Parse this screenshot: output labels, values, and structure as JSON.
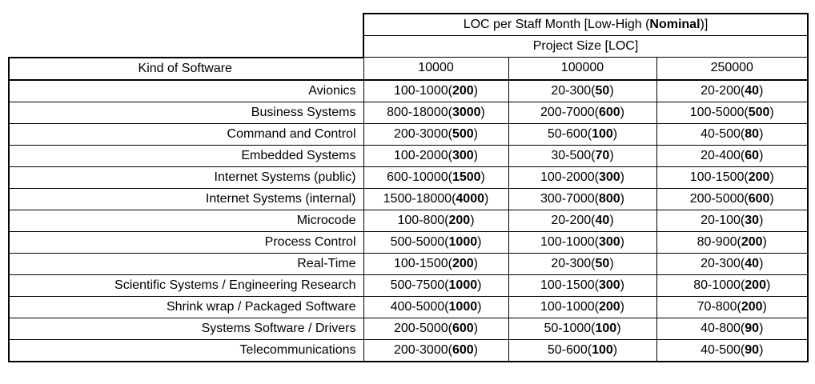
{
  "table": {
    "header": {
      "title_pre": "LOC per Staff Month [Low-High (",
      "title_bold": "Nominal",
      "title_post": ")]",
      "subtitle": "Project Size [LOC]",
      "kind_label": "Kind of Software",
      "sizes": [
        "10000",
        "100000",
        "250000"
      ]
    },
    "rows": [
      {
        "kind": "Avionics",
        "cells": [
          {
            "range": "100-1000",
            "nominal": "200"
          },
          {
            "range": "20-300",
            "nominal": "50"
          },
          {
            "range": "20-200",
            "nominal": "40"
          }
        ]
      },
      {
        "kind": "Business Systems",
        "cells": [
          {
            "range": "800-18000",
            "nominal": "3000"
          },
          {
            "range": "200-7000",
            "nominal": "600"
          },
          {
            "range": "100-5000",
            "nominal": "500"
          }
        ]
      },
      {
        "kind": "Command and Control",
        "cells": [
          {
            "range": "200-3000",
            "nominal": "500"
          },
          {
            "range": "50-600",
            "nominal": "100"
          },
          {
            "range": "40-500",
            "nominal": "80"
          }
        ]
      },
      {
        "kind": "Embedded Systems",
        "cells": [
          {
            "range": "100-2000",
            "nominal": "300"
          },
          {
            "range": "30-500",
            "nominal": "70"
          },
          {
            "range": "20-400",
            "nominal": "60"
          }
        ]
      },
      {
        "kind": "Internet Systems (public)",
        "cells": [
          {
            "range": "600-10000",
            "nominal": "1500"
          },
          {
            "range": "100-2000",
            "nominal": "300"
          },
          {
            "range": "100-1500",
            "nominal": "200"
          }
        ]
      },
      {
        "kind": "Internet Systems (internal)",
        "cells": [
          {
            "range": "1500-18000",
            "nominal": "4000"
          },
          {
            "range": "300-7000",
            "nominal": "800"
          },
          {
            "range": "200-5000",
            "nominal": "600"
          }
        ]
      },
      {
        "kind": "Microcode",
        "cells": [
          {
            "range": "100-800",
            "nominal": "200"
          },
          {
            "range": "20-200",
            "nominal": "40"
          },
          {
            "range": "20-100",
            "nominal": "30"
          }
        ]
      },
      {
        "kind": "Process Control",
        "cells": [
          {
            "range": "500-5000",
            "nominal": "1000"
          },
          {
            "range": "100-1000",
            "nominal": "300"
          },
          {
            "range": "80-900",
            "nominal": "200"
          }
        ]
      },
      {
        "kind": "Real-Time",
        "cells": [
          {
            "range": "100-1500",
            "nominal": "200"
          },
          {
            "range": "20-300",
            "nominal": "50"
          },
          {
            "range": "20-300",
            "nominal": "40"
          }
        ]
      },
      {
        "kind": "Scientific Systems / Engineering Research",
        "cells": [
          {
            "range": "500-7500",
            "nominal": "1000"
          },
          {
            "range": "100-1500",
            "nominal": "300"
          },
          {
            "range": "80-1000",
            "nominal": "200"
          }
        ]
      },
      {
        "kind": "Shrink wrap / Packaged Software",
        "cells": [
          {
            "range": "400-5000",
            "nominal": "1000"
          },
          {
            "range": "100-1000",
            "nominal": "200"
          },
          {
            "range": "70-800",
            "nominal": "200"
          }
        ]
      },
      {
        "kind": "Systems Software / Drivers",
        "cells": [
          {
            "range": "200-5000",
            "nominal": "600"
          },
          {
            "range": "50-1000",
            "nominal": "100"
          },
          {
            "range": "40-800",
            "nominal": "90"
          }
        ]
      },
      {
        "kind": "Telecommunications",
        "cells": [
          {
            "range": "200-3000",
            "nominal": "600"
          },
          {
            "range": "50-600",
            "nominal": "100"
          },
          {
            "range": "40-500",
            "nominal": "90"
          }
        ]
      }
    ]
  }
}
